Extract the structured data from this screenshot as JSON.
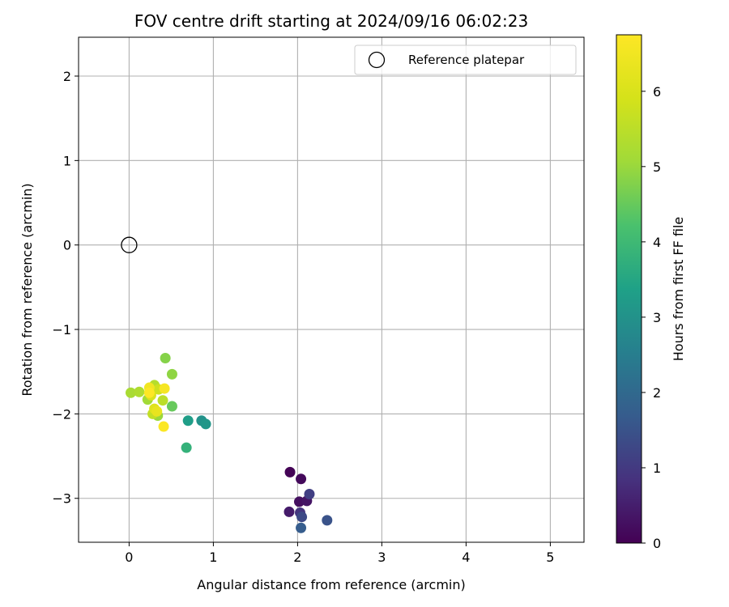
{
  "chart_data": {
    "type": "scatter",
    "title": "FOV centre drift starting at 2024/09/16 06:02:23",
    "xlabel": "Angular distance from reference (arcmin)",
    "ylabel": "Rotation from reference (arcmin)",
    "xlim": [
      -0.6,
      5.4
    ],
    "ylim": [
      -3.52,
      2.46
    ],
    "xticks": [
      0,
      1,
      2,
      3,
      4,
      5
    ],
    "xtick_labels": [
      "0",
      "1",
      "2",
      "3",
      "4",
      "5"
    ],
    "yticks": [
      2,
      1,
      0,
      -1,
      -2,
      -3
    ],
    "ytick_labels": [
      "2",
      "1",
      "0",
      "−1",
      "−2",
      "−3"
    ],
    "grid": true,
    "legend": {
      "placement": "top-right",
      "entries": [
        {
          "label": "Reference platepar",
          "marker": "open-circle",
          "color": "#000000"
        }
      ]
    },
    "reference_point": {
      "x": 0,
      "y": 0
    },
    "colorbar": {
      "label": "Hours from first FF file",
      "colormap": "viridis",
      "range": [
        0,
        6.75
      ],
      "ticks": [
        0,
        1,
        2,
        3,
        4,
        5,
        6
      ],
      "tick_labels": [
        "0",
        "1",
        "2",
        "3",
        "4",
        "5",
        "6"
      ]
    },
    "points": [
      {
        "x": 1.91,
        "y": -2.69,
        "hours": 0.05
      },
      {
        "x": 2.04,
        "y": -2.77,
        "hours": 0.15
      },
      {
        "x": 2.02,
        "y": -3.04,
        "hours": 0.25
      },
      {
        "x": 2.11,
        "y": -3.03,
        "hours": 0.35
      },
      {
        "x": 1.9,
        "y": -3.16,
        "hours": 0.45
      },
      {
        "x": 2.03,
        "y": -3.17,
        "hours": 0.9
      },
      {
        "x": 2.14,
        "y": -2.95,
        "hours": 1.1
      },
      {
        "x": 2.05,
        "y": -3.22,
        "hours": 1.3
      },
      {
        "x": 2.35,
        "y": -3.26,
        "hours": 1.5
      },
      {
        "x": 2.04,
        "y": -3.35,
        "hours": 1.7
      },
      {
        "x": 0.86,
        "y": -2.08,
        "hours": 3.0
      },
      {
        "x": 0.91,
        "y": -2.12,
        "hours": 3.1
      },
      {
        "x": 0.7,
        "y": -2.08,
        "hours": 3.3
      },
      {
        "x": 0.68,
        "y": -2.4,
        "hours": 3.8
      },
      {
        "x": 0.51,
        "y": -1.91,
        "hours": 4.5
      },
      {
        "x": 0.43,
        "y": -1.34,
        "hours": 4.8
      },
      {
        "x": 0.51,
        "y": -1.53,
        "hours": 4.9
      },
      {
        "x": 0.34,
        "y": -2.02,
        "hours": 5.0
      },
      {
        "x": 0.02,
        "y": -1.75,
        "hours": 5.2
      },
      {
        "x": 0.12,
        "y": -1.74,
        "hours": 5.3
      },
      {
        "x": 0.22,
        "y": -1.83,
        "hours": 5.1
      },
      {
        "x": 0.3,
        "y": -1.66,
        "hours": 5.4
      },
      {
        "x": 0.4,
        "y": -1.84,
        "hours": 5.5
      },
      {
        "x": 0.28,
        "y": -2.0,
        "hours": 5.6
      },
      {
        "x": 0.35,
        "y": -1.71,
        "hours": 5.8
      },
      {
        "x": 0.26,
        "y": -1.78,
        "hours": 6.0
      },
      {
        "x": 0.3,
        "y": -1.94,
        "hours": 6.1
      },
      {
        "x": 0.33,
        "y": -1.97,
        "hours": 6.3
      },
      {
        "x": 0.24,
        "y": -1.69,
        "hours": 6.5
      },
      {
        "x": 0.42,
        "y": -1.7,
        "hours": 6.6
      },
      {
        "x": 0.41,
        "y": -2.15,
        "hours": 6.7
      },
      {
        "x": 0.24,
        "y": -1.75,
        "hours": 6.75
      }
    ]
  }
}
